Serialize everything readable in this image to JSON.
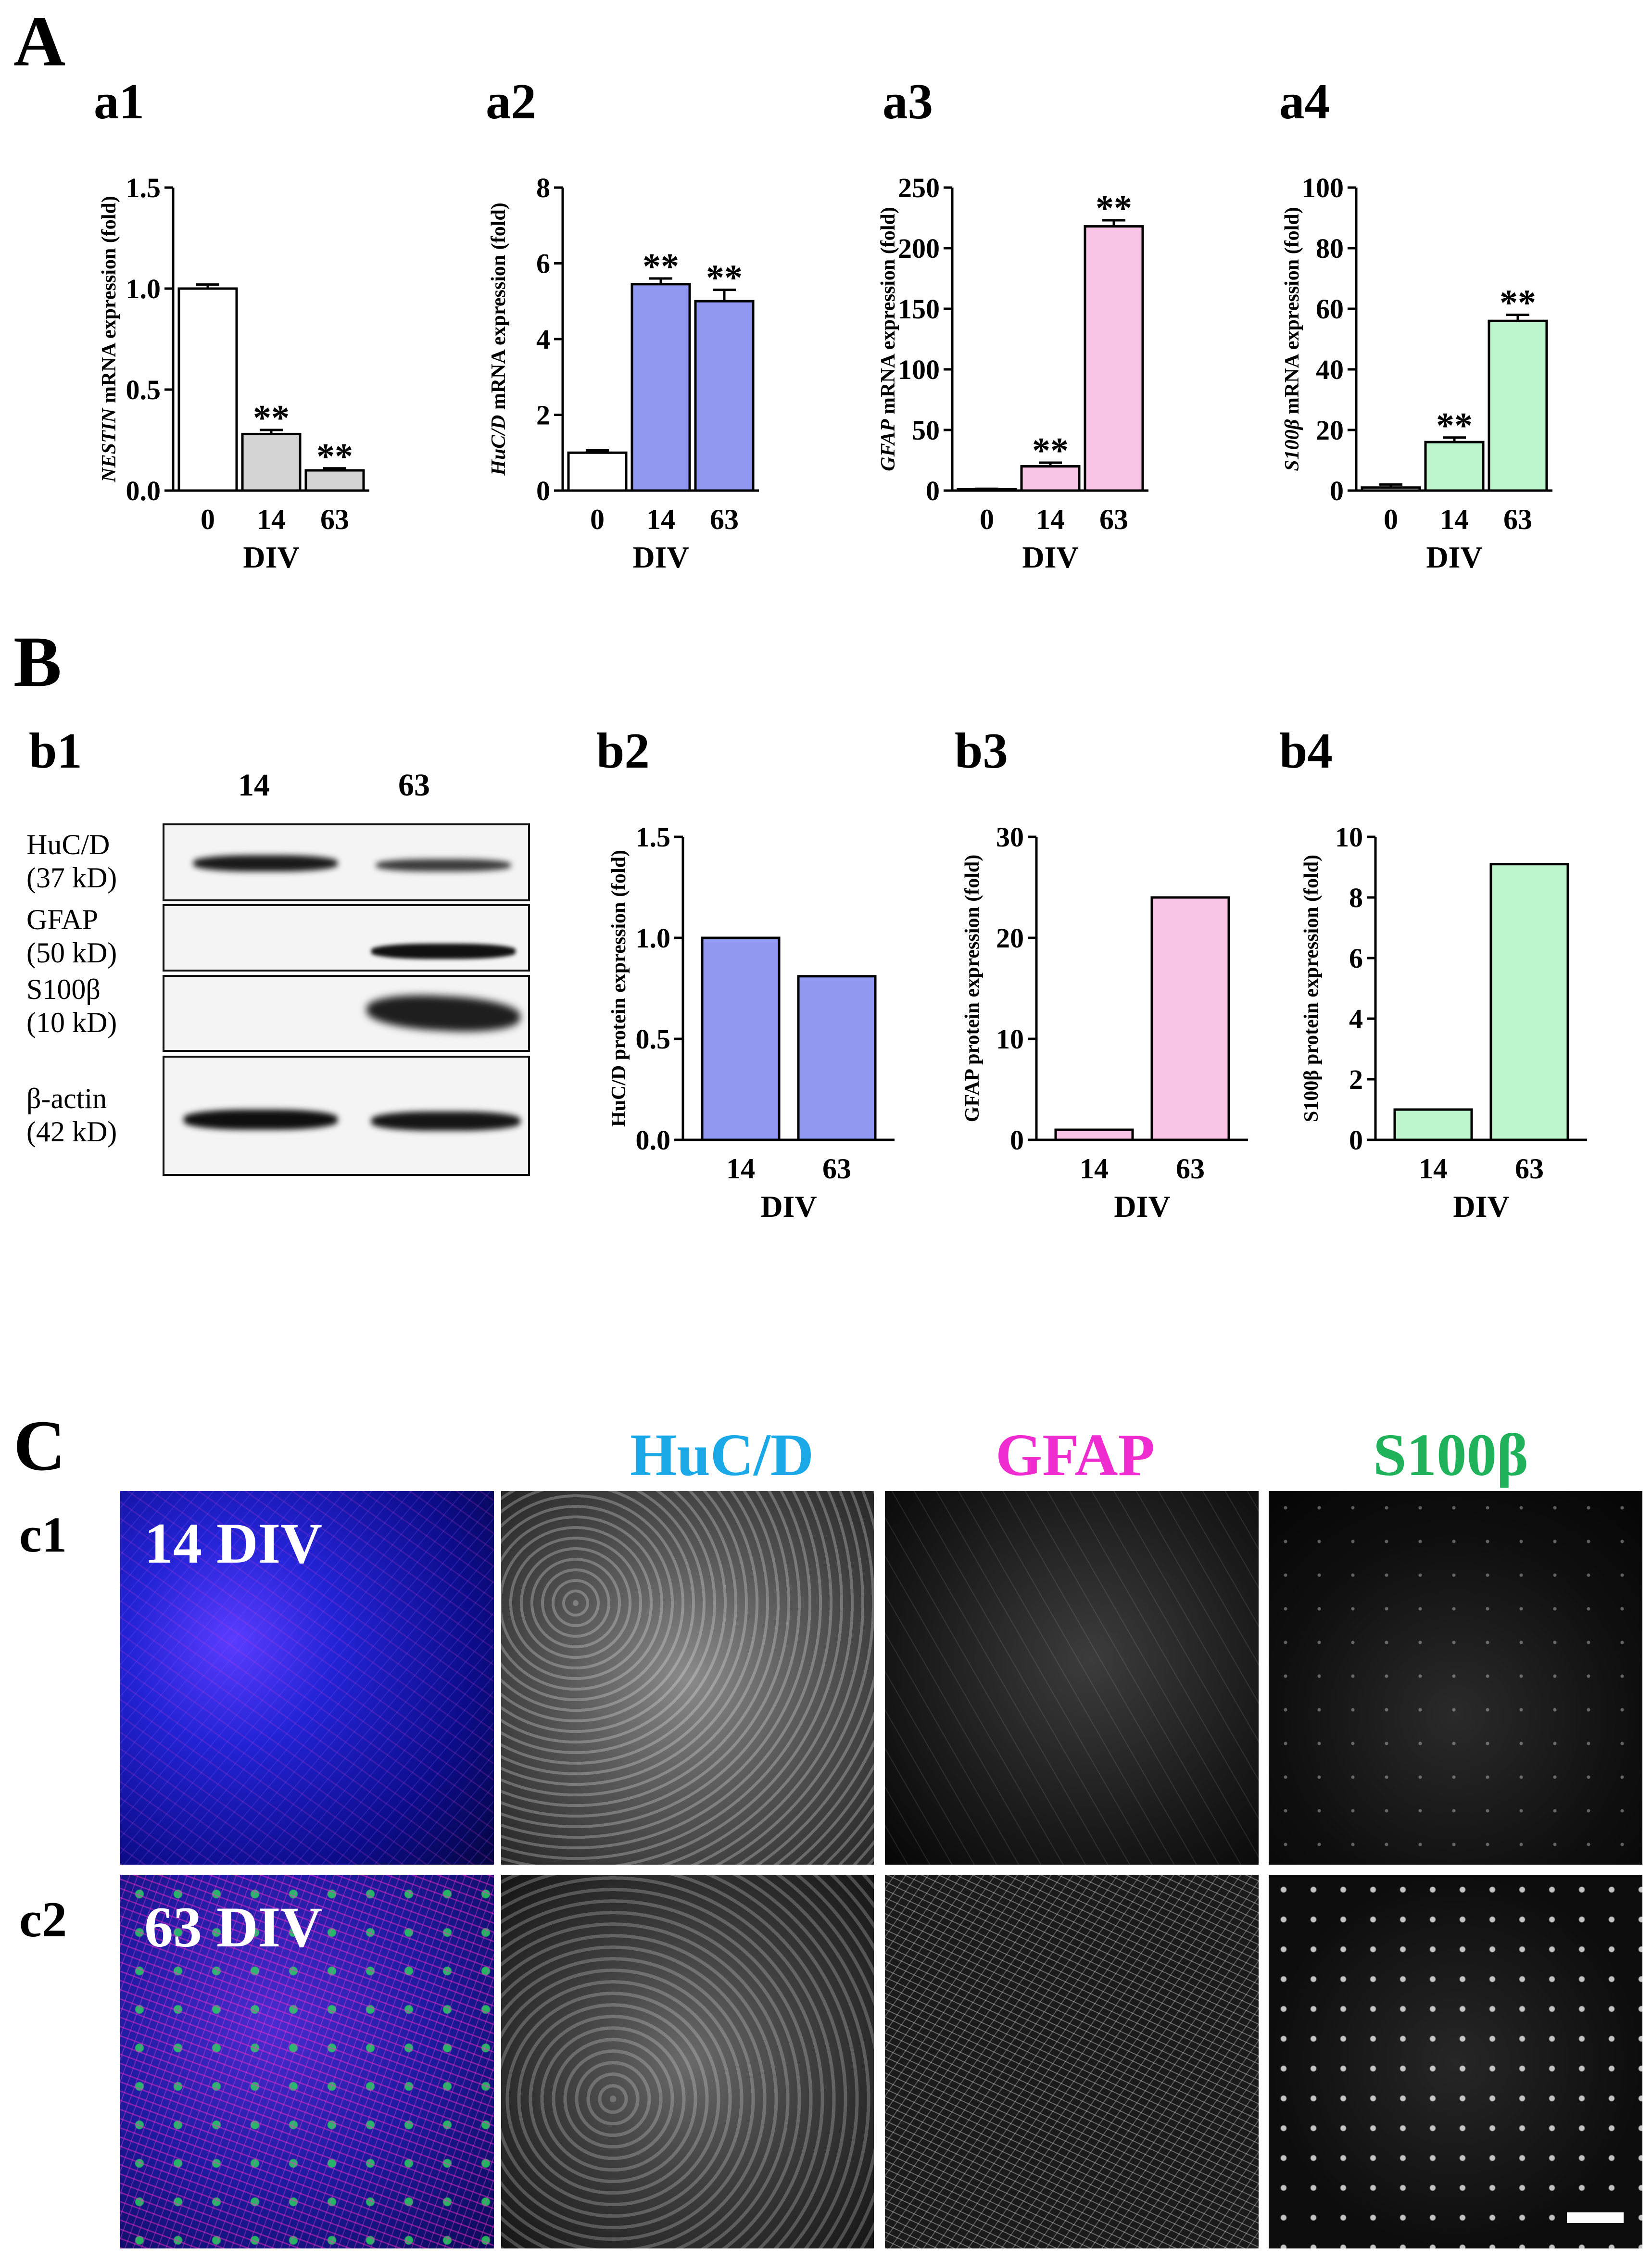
{
  "sections": {
    "A": "A",
    "B": "B",
    "C": "C"
  },
  "panel_labels": {
    "a1": "a1",
    "a2": "a2",
    "a3": "a3",
    "a4": "a4",
    "b1": "b1",
    "b2": "b2",
    "b3": "b3",
    "b4": "b4",
    "c1": "c1",
    "c2": "c2"
  },
  "chart_data": [
    {
      "id": "a1",
      "type": "bar",
      "categories": [
        "0",
        "14",
        "63"
      ],
      "values": [
        1.0,
        0.28,
        0.1
      ],
      "errors": [
        0.02,
        0.02,
        0.01
      ],
      "significance": [
        "",
        "**",
        "**"
      ],
      "colors": [
        "#ffffff",
        "#d4d4d4",
        "#d4d4d4"
      ],
      "ylabel": "NESTIN mRNA expression (fold)",
      "ylabel_italic": "NESTIN",
      "ylabel_rest": " mRNA expression (fold)",
      "xlabel": "DIV",
      "ylim": [
        0,
        1.5
      ],
      "yticks": [
        "0.0",
        "0.5",
        "1.0",
        "1.5"
      ]
    },
    {
      "id": "a2",
      "type": "bar",
      "categories": [
        "0",
        "14",
        "63"
      ],
      "values": [
        1.0,
        5.45,
        5.0
      ],
      "errors": [
        0.06,
        0.15,
        0.3
      ],
      "significance": [
        "",
        "**",
        "**"
      ],
      "colors": [
        "#ffffff",
        "#9098f2",
        "#9098f2"
      ],
      "ylabel": "HuC/D mRNA expression (fold)",
      "ylabel_italic": "HuC/D",
      "ylabel_rest": " mRNA expression (fold)",
      "xlabel": "DIV",
      "ylim": [
        0,
        8
      ],
      "yticks": [
        "0",
        "2",
        "4",
        "6",
        "8"
      ]
    },
    {
      "id": "a3",
      "type": "bar",
      "categories": [
        "0",
        "14",
        "63"
      ],
      "values": [
        1,
        20,
        218
      ],
      "errors": [
        0.5,
        3,
        5
      ],
      "significance": [
        "",
        "**",
        "**"
      ],
      "colors": [
        "#ffffff",
        "#f9c4e5",
        "#f9c4e5"
      ],
      "ylabel": "GFAP mRNA expression (fold)",
      "ylabel_italic": "GFAP",
      "ylabel_rest": " mRNA expression (fold)",
      "xlabel": "DIV",
      "ylim": [
        0,
        250
      ],
      "yticks": [
        "0",
        "50",
        "100",
        "150",
        "200",
        "250"
      ]
    },
    {
      "id": "a4",
      "type": "bar",
      "categories": [
        "0",
        "14",
        "63"
      ],
      "values": [
        1,
        16,
        56
      ],
      "errors": [
        1,
        1.5,
        2
      ],
      "significance": [
        "",
        "**",
        "**"
      ],
      "colors": [
        "#ffffff",
        "#bdf5cc",
        "#bdf5cc"
      ],
      "ylabel": "S100β mRNA expression (fold)",
      "ylabel_italic": "S100β",
      "ylabel_rest": " mRNA expression (fold)",
      "xlabel": "DIV",
      "ylim": [
        0,
        100
      ],
      "yticks": [
        "0",
        "20",
        "40",
        "60",
        "80",
        "100"
      ]
    },
    {
      "id": "b2",
      "type": "bar",
      "categories": [
        "14",
        "63"
      ],
      "values": [
        1.0,
        0.81
      ],
      "errors": [
        0,
        0
      ],
      "significance": [
        "",
        ""
      ],
      "colors": [
        "#9098f2",
        "#9098f2"
      ],
      "ylabel": "HuC/D protein expression (fold)",
      "ylabel_italic": "",
      "ylabel_rest": "HuC/D protein expression (fold)",
      "xlabel": "DIV",
      "ylim": [
        0,
        1.5
      ],
      "yticks": [
        "0.0",
        "0.5",
        "1.0",
        "1.5"
      ]
    },
    {
      "id": "b3",
      "type": "bar",
      "categories": [
        "14",
        "63"
      ],
      "values": [
        1,
        24
      ],
      "errors": [
        0,
        0
      ],
      "significance": [
        "",
        ""
      ],
      "colors": [
        "#f9c4e5",
        "#f9c4e5"
      ],
      "ylabel": "GFAP protein expression (fold)",
      "ylabel_italic": "",
      "ylabel_rest": "GFAP protein expression (fold)",
      "xlabel": "DIV",
      "ylim": [
        0,
        30
      ],
      "yticks": [
        "0",
        "10",
        "20",
        "30"
      ]
    },
    {
      "id": "b4",
      "type": "bar",
      "categories": [
        "14",
        "63"
      ],
      "values": [
        1,
        9.1
      ],
      "errors": [
        0,
        0
      ],
      "significance": [
        "",
        ""
      ],
      "colors": [
        "#bdf5cc",
        "#bdf5cc"
      ],
      "ylabel": "S100β protein expression (fold)",
      "ylabel_italic": "",
      "ylabel_rest": "S100β protein expression (fold)",
      "xlabel": "DIV",
      "ylim": [
        0,
        10
      ],
      "yticks": [
        "0",
        "2",
        "4",
        "6",
        "8",
        "10"
      ]
    }
  ],
  "western_blot": {
    "lanes": [
      "14",
      "63"
    ],
    "rows": [
      {
        "line1": "HuC/D",
        "line2": "(37 kD)"
      },
      {
        "line1": "GFAP",
        "line2": "(50 kD)"
      },
      {
        "line1": "S100β",
        "line2": "(10 kD)"
      },
      {
        "line1": "β-actin",
        "line2": "(42 kD)"
      }
    ]
  },
  "microscopy": {
    "channels": [
      {
        "label": "HuC/D",
        "color": "#1aa9e6"
      },
      {
        "label": "GFAP",
        "color": "#ee2ccf"
      },
      {
        "label": "S100β",
        "color": "#1fb25a"
      }
    ],
    "rows": [
      {
        "label": "c1",
        "condition": "14 DIV"
      },
      {
        "label": "c2",
        "condition": "63 DIV"
      }
    ]
  }
}
